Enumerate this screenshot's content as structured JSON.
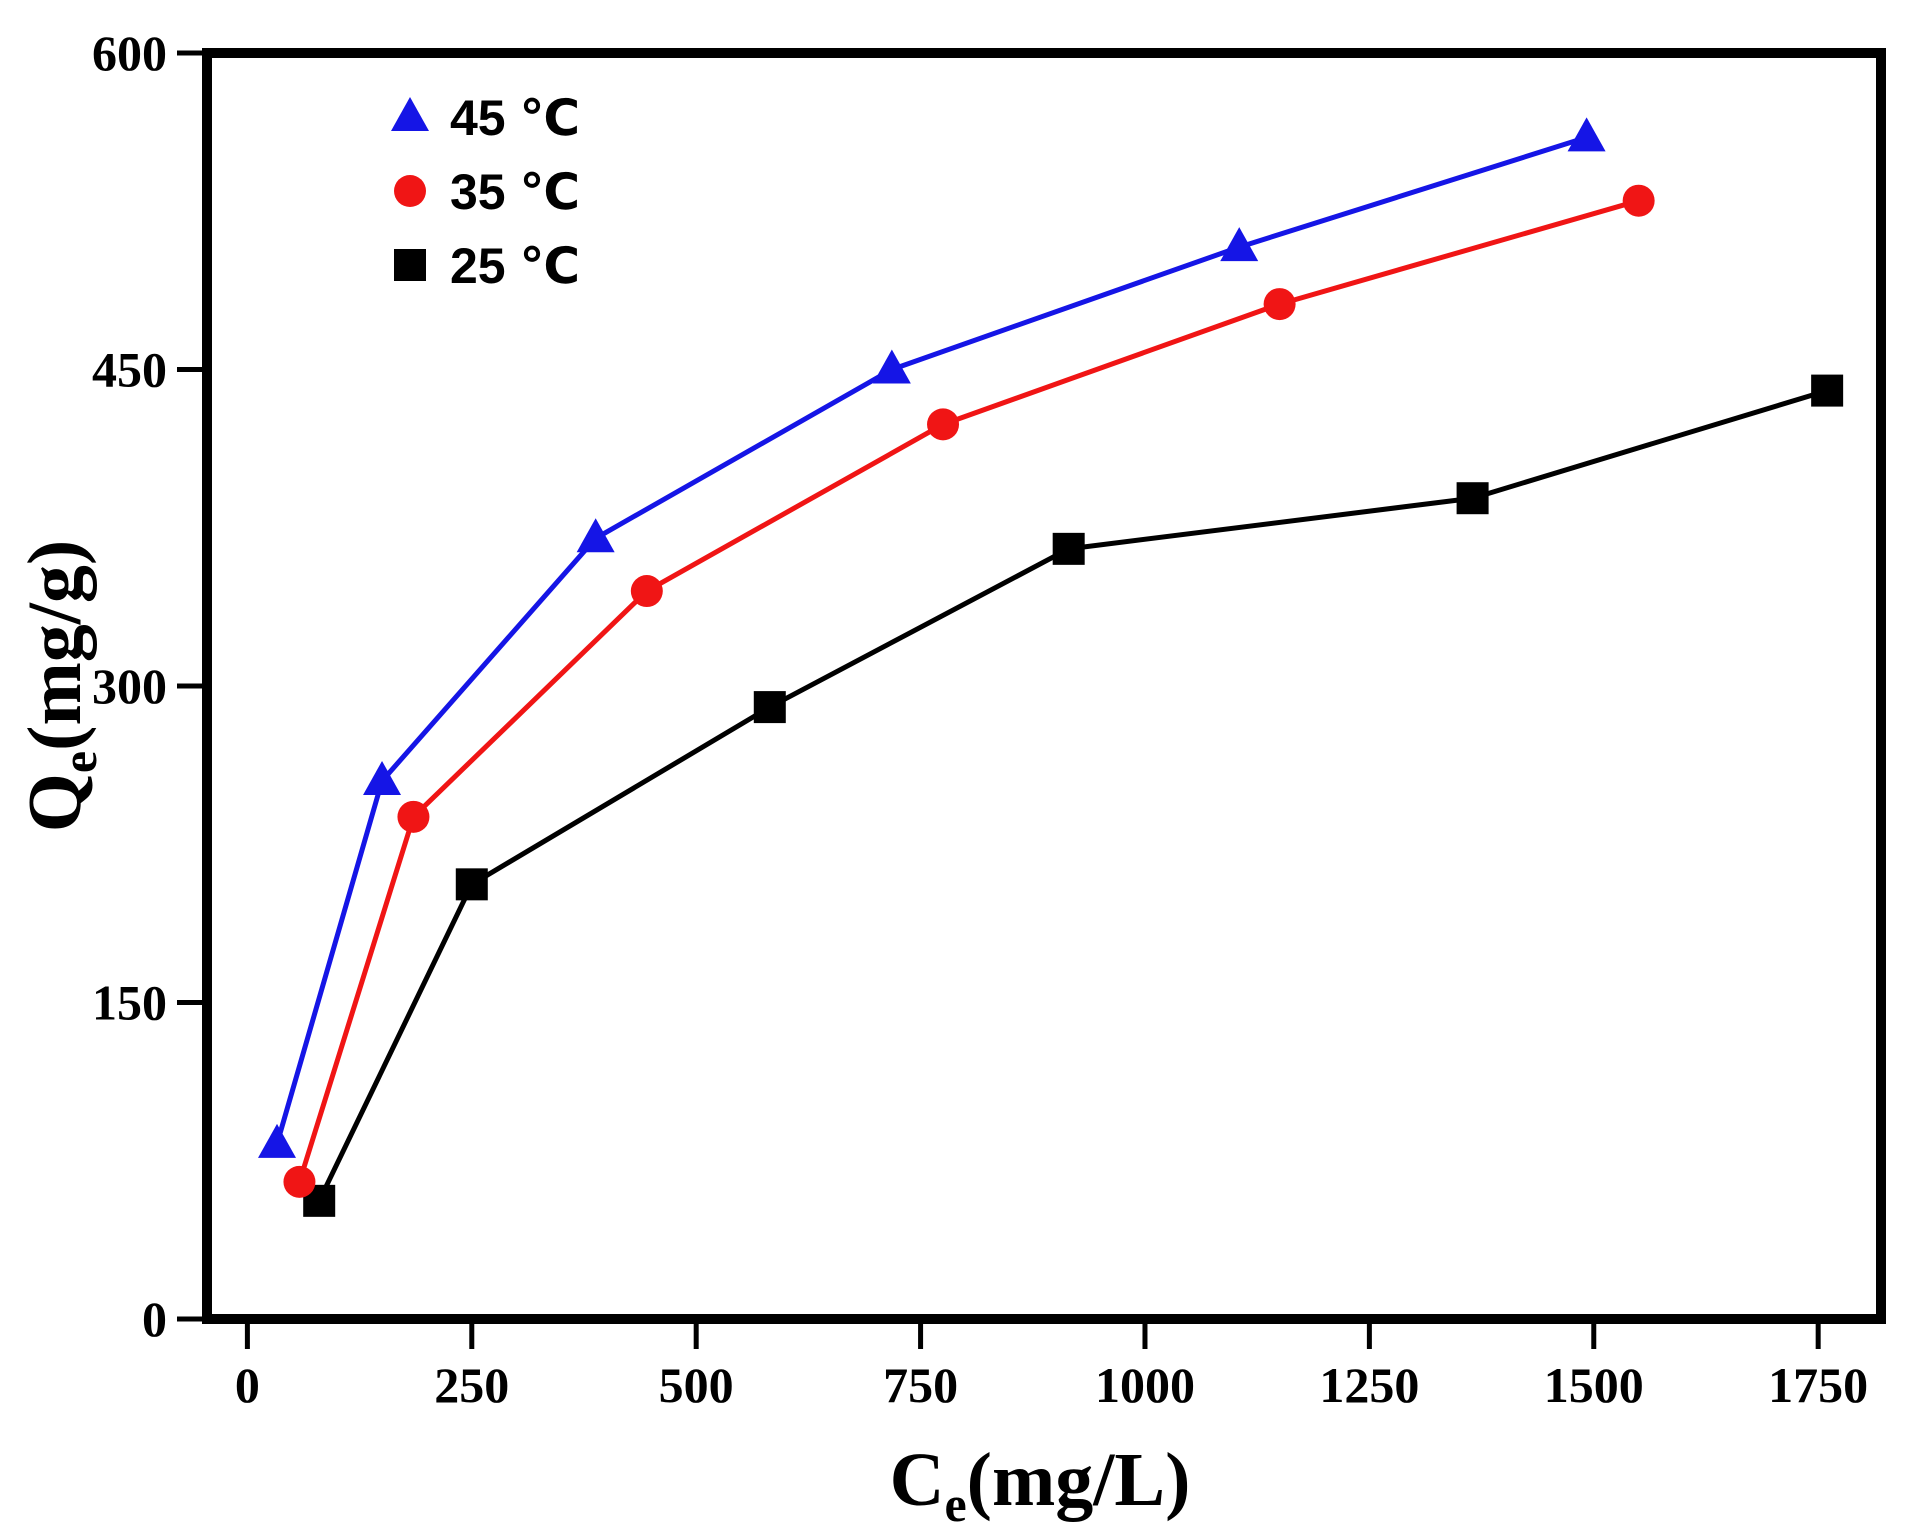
{
  "chart_data": {
    "type": "line",
    "xlabel": {
      "main": "C",
      "sub": "e",
      "unit": "(mg/L)"
    },
    "ylabel": {
      "main": "Q",
      "sub": "e",
      "unit": "(mg/g)"
    },
    "xlim": [
      -45,
      1820
    ],
    "ylim": [
      0,
      600
    ],
    "xticks": [
      0,
      250,
      500,
      750,
      1000,
      1250,
      1500,
      1750
    ],
    "yticks": [
      0,
      150,
      300,
      450,
      600
    ],
    "legend_position": "top-left",
    "series": [
      {
        "name": "45 ℃",
        "marker": "triangle",
        "color": "#1515e6",
        "x": [
          33,
          150,
          388,
          718,
          1105,
          1492
        ],
        "y": [
          83,
          255,
          370,
          450,
          508,
          560
        ]
      },
      {
        "name": "35 ℃",
        "marker": "circle",
        "color": "#f01515",
        "x": [
          58,
          185,
          445,
          775,
          1150,
          1550
        ],
        "y": [
          65,
          238,
          345,
          424,
          481,
          530
        ]
      },
      {
        "name": "25 ℃",
        "marker": "square",
        "color": "#000000",
        "x": [
          80,
          250,
          582,
          915,
          1365,
          1760
        ],
        "y": [
          56,
          206,
          290,
          365,
          389,
          440
        ]
      }
    ]
  }
}
